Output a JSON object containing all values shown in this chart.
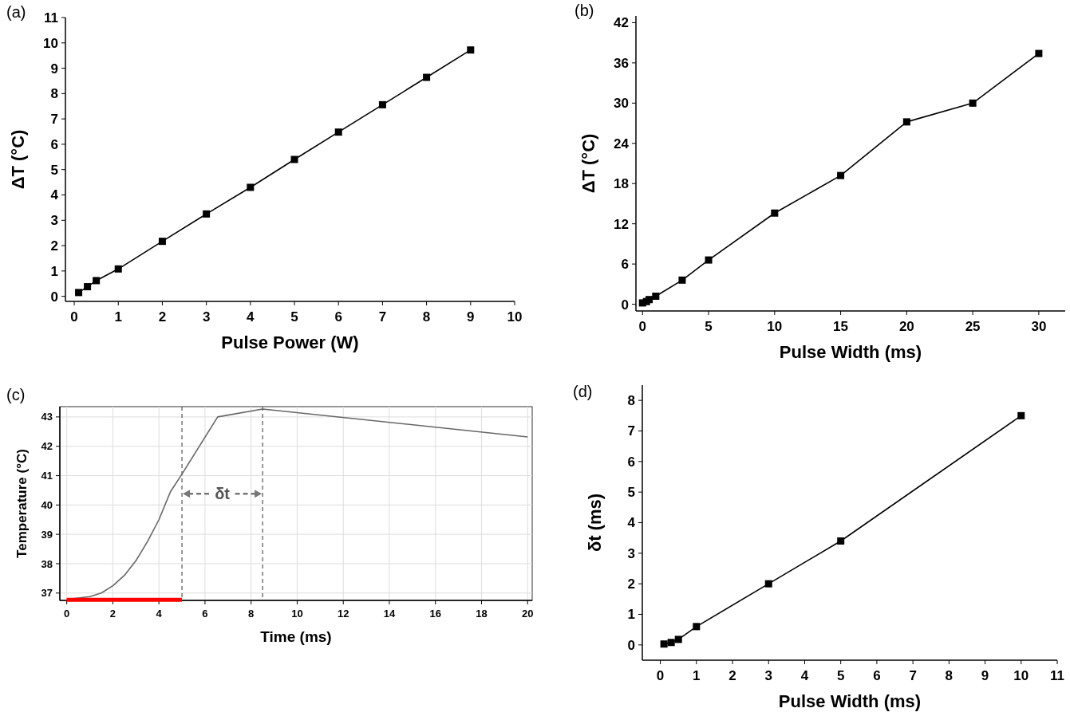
{
  "chart_data": [
    {
      "type": "line",
      "title": "(a)",
      "xlabel": "Pulse Power (W)",
      "ylabel": "ΔT (°C)",
      "xlim": [
        -0.2,
        10
      ],
      "ylim": [
        -0.2,
        11
      ],
      "xticks": [
        0,
        1,
        2,
        3,
        4,
        5,
        6,
        7,
        8,
        9,
        10
      ],
      "yticks": [
        0,
        1,
        2,
        3,
        4,
        5,
        6,
        7,
        8,
        9,
        10,
        11
      ],
      "marker": "square",
      "grid": false,
      "series": [
        {
          "color": "#000000",
          "x": [
            0.1,
            0.3,
            0.5,
            1,
            2,
            3,
            4,
            5,
            6,
            7,
            8,
            9
          ],
          "values": [
            0.15,
            0.38,
            0.62,
            1.08,
            2.17,
            3.25,
            4.3,
            5.4,
            6.48,
            7.56,
            8.64,
            9.72
          ]
        }
      ]
    },
    {
      "type": "line",
      "title": "(b)",
      "xlabel": "Pulse Width (ms)",
      "ylabel": "ΔT (°C)",
      "xlim": [
        -0.5,
        32
      ],
      "ylim": [
        -1,
        43
      ],
      "xticks": [
        0,
        5,
        10,
        15,
        20,
        25,
        30
      ],
      "yticks": [
        0,
        6,
        12,
        18,
        24,
        30,
        36,
        42
      ],
      "marker": "square",
      "grid": false,
      "series": [
        {
          "color": "#000000",
          "x": [
            0,
            0.3,
            0.5,
            1,
            3,
            5,
            10,
            15,
            20,
            25,
            30
          ],
          "values": [
            0.2,
            0.4,
            0.7,
            1.2,
            3.6,
            6.6,
            13.6,
            19.2,
            27.2,
            30,
            37.4
          ]
        }
      ]
    },
    {
      "type": "line",
      "title": "(c)",
      "xlabel": "Time (ms)",
      "ylabel": "Temperature (°C)",
      "xlim": [
        -0.3,
        20.2
      ],
      "ylim": [
        36.75,
        43.35
      ],
      "xticks": [
        0,
        2,
        4,
        6,
        8,
        10,
        12,
        14,
        16,
        18,
        20
      ],
      "yticks": [
        37,
        38,
        39,
        40,
        41,
        42,
        43
      ],
      "marker": "none",
      "grid": true,
      "series": [
        {
          "color": "#666666",
          "x": [
            0,
            1,
            1.5,
            2,
            2.5,
            3,
            3.5,
            4,
            4.5,
            5,
            6.55,
            8.5,
            20
          ],
          "values": [
            36.78,
            36.88,
            37.0,
            37.25,
            37.6,
            38.1,
            38.75,
            39.5,
            40.45,
            41.05,
            43.0,
            43.27,
            42.32
          ]
        },
        {
          "color": "#ff0000",
          "x": [
            0,
            5
          ],
          "values": [
            36.77,
            36.77
          ]
        }
      ],
      "ref_lines": [
        {
          "axis": "x",
          "value": 5,
          "color": "#555555",
          "line_style": "dashed"
        },
        {
          "axis": "x",
          "value": 8.5,
          "color": "#555555",
          "line_style": "dashed"
        }
      ],
      "annotations": [
        "δt"
      ]
    },
    {
      "type": "line",
      "title": "(d)",
      "xlabel": "Pulse Width (ms)",
      "ylabel": "δt (ms)",
      "xlim": [
        -0.5,
        11
      ],
      "ylim": [
        -0.5,
        8.5
      ],
      "xticks": [
        0,
        1,
        2,
        3,
        4,
        5,
        6,
        7,
        8,
        9,
        10,
        11
      ],
      "yticks": [
        0,
        1,
        2,
        3,
        4,
        5,
        6,
        7,
        8
      ],
      "marker": "square",
      "grid": false,
      "series": [
        {
          "color": "#000000",
          "x": [
            0.1,
            0.3,
            0.5,
            1,
            3,
            5,
            10
          ],
          "values": [
            0.03,
            0.08,
            0.18,
            0.6,
            2.0,
            3.4,
            7.5
          ]
        }
      ]
    }
  ]
}
